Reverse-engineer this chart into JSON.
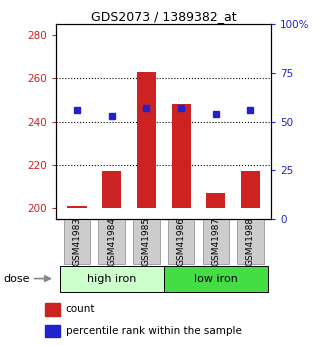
{
  "title": "GDS2073 / 1389382_at",
  "categories": [
    "GSM41983",
    "GSM41984",
    "GSM41985",
    "GSM41986",
    "GSM41987",
    "GSM41988"
  ],
  "count_values": [
    201,
    217,
    263,
    248,
    207,
    217
  ],
  "percentile_values": [
    56,
    53,
    57,
    57,
    54,
    56
  ],
  "count_base": 200,
  "ylim_left": [
    195,
    285
  ],
  "ylim_right": [
    0,
    100
  ],
  "yticks_left": [
    200,
    220,
    240,
    260,
    280
  ],
  "yticks_right": [
    0,
    25,
    50,
    75,
    100
  ],
  "bar_color": "#cc2222",
  "dot_color": "#2222cc",
  "bar_width": 0.55,
  "high_iron_color": "#ccffcc",
  "low_iron_color": "#44dd44",
  "left_axis_color": "#cc2222",
  "right_axis_color": "#2222cc",
  "plot_bg_color": "#ffffff",
  "tick_label_bg": "#cccccc",
  "gridline_ticks": [
    220,
    240,
    260
  ],
  "group_spans": [
    {
      "label": "high iron",
      "start": 0,
      "end": 3
    },
    {
      "label": "low iron",
      "start": 3,
      "end": 6
    }
  ]
}
